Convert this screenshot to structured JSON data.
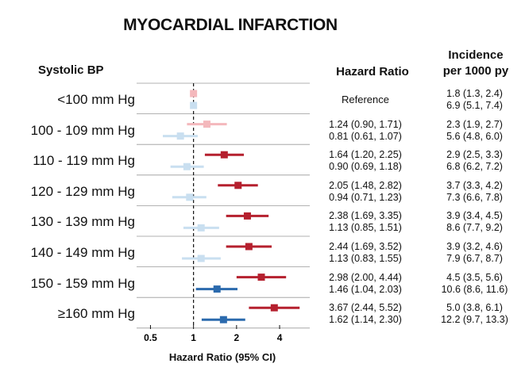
{
  "chart_data": {
    "type": "forest",
    "title": "MYOCARDIAL INFARCTION",
    "row_header": "Systolic BP",
    "hr_header": "Hazard Ratio",
    "incidence_header_lines": [
      "Incidence",
      "per 1000 py"
    ],
    "xlabel": "Hazard Ratio (95% CI)",
    "x_scale": "log2",
    "xlim": [
      0.4,
      6.5
    ],
    "x_ticks": [
      {
        "value": 0.5,
        "label": "0.5"
      },
      {
        "value": 1,
        "label": "1"
      },
      {
        "value": 2,
        "label": "2"
      },
      {
        "value": 4,
        "label": "4"
      }
    ],
    "reference_line": 1,
    "colors": {
      "series_a_light": "#f4b8bc",
      "series_a_dark": "#b5202e",
      "series_b_light": "#c9dff0",
      "series_b_dark": "#2b6aad",
      "gridline": "#999999"
    },
    "rows": [
      {
        "label": "<100 mm Hg",
        "hr_text": "Reference",
        "a": {
          "hr": 1.0,
          "lo": 1.0,
          "hi": 1.0,
          "text": "Reference",
          "incidence": "1.8 (1.3, 2.4)"
        },
        "b": {
          "hr": 1.0,
          "lo": 1.0,
          "hi": 1.0,
          "text": "Reference",
          "incidence": "6.9 (5.1, 7.4)"
        },
        "style": "light"
      },
      {
        "label": "100 - 109 mm Hg",
        "a": {
          "hr": 1.24,
          "lo": 0.9,
          "hi": 1.71,
          "text": "1.24 (0.90, 1.71)",
          "incidence": "2.3 (1.9, 2.7)"
        },
        "b": {
          "hr": 0.81,
          "lo": 0.61,
          "hi": 1.07,
          "text": "0.81 (0.61, 1.07)",
          "incidence": "5.6 (4.8, 6.0)"
        },
        "style": "light"
      },
      {
        "label": "110 - 119 mm Hg",
        "a": {
          "hr": 1.64,
          "lo": 1.2,
          "hi": 2.25,
          "text": "1.64 (1.20, 2.25)",
          "incidence": "2.9 (2.5, 3.3)"
        },
        "b": {
          "hr": 0.9,
          "lo": 0.69,
          "hi": 1.18,
          "text": "0.90 (0.69, 1.18)",
          "incidence": "6.8 (6.2, 7.2)"
        },
        "style": "mixed"
      },
      {
        "label": "120 - 129 mm Hg",
        "a": {
          "hr": 2.05,
          "lo": 1.48,
          "hi": 2.82,
          "text": "2.05 (1.48, 2.82)",
          "incidence": "3.7 (3.3, 4.2)"
        },
        "b": {
          "hr": 0.94,
          "lo": 0.71,
          "hi": 1.23,
          "text": "0.94 (0.71, 1.23)",
          "incidence": "7.3 (6.6, 7.8)"
        },
        "style": "mixed"
      },
      {
        "label": "130 - 139 mm Hg",
        "a": {
          "hr": 2.38,
          "lo": 1.69,
          "hi": 3.35,
          "text": "2.38 (1.69, 3.35)",
          "incidence": "3.9 (3.4, 4.5)"
        },
        "b": {
          "hr": 1.13,
          "lo": 0.85,
          "hi": 1.51,
          "text": "1.13 (0.85, 1.51)",
          "incidence": "8.6 (7.7, 9.2)"
        },
        "style": "mixed"
      },
      {
        "label": "140 - 149 mm Hg",
        "a": {
          "hr": 2.44,
          "lo": 1.69,
          "hi": 3.52,
          "text": "2.44 (1.69, 3.52)",
          "incidence": "3.9 (3.2, 4.6)"
        },
        "b": {
          "hr": 1.13,
          "lo": 0.83,
          "hi": 1.55,
          "text": "1.13 (0.83, 1.55)",
          "incidence": "7.9 (6.7, 8.7)"
        },
        "style": "mixed"
      },
      {
        "label": "150 - 159 mm Hg",
        "a": {
          "hr": 2.98,
          "lo": 2.0,
          "hi": 4.44,
          "text": "2.98 (2.00, 4.44)",
          "incidence": "4.5 (3.5, 5.6)"
        },
        "b": {
          "hr": 1.46,
          "lo": 1.04,
          "hi": 2.03,
          "text": "1.46 (1.04, 2.03)",
          "incidence": "10.6 (8.6, 11.6)"
        },
        "style": "dark"
      },
      {
        "label": "≥160 mm Hg",
        "a": {
          "hr": 3.67,
          "lo": 2.44,
          "hi": 5.52,
          "text": "3.67 (2.44, 5.52)",
          "incidence": "5.0 (3.8, 6.1)"
        },
        "b": {
          "hr": 1.62,
          "lo": 1.14,
          "hi": 2.3,
          "text": "1.62 (1.14, 2.30)",
          "incidence": "12.2 (9.7, 13.3)"
        },
        "style": "dark"
      }
    ]
  }
}
